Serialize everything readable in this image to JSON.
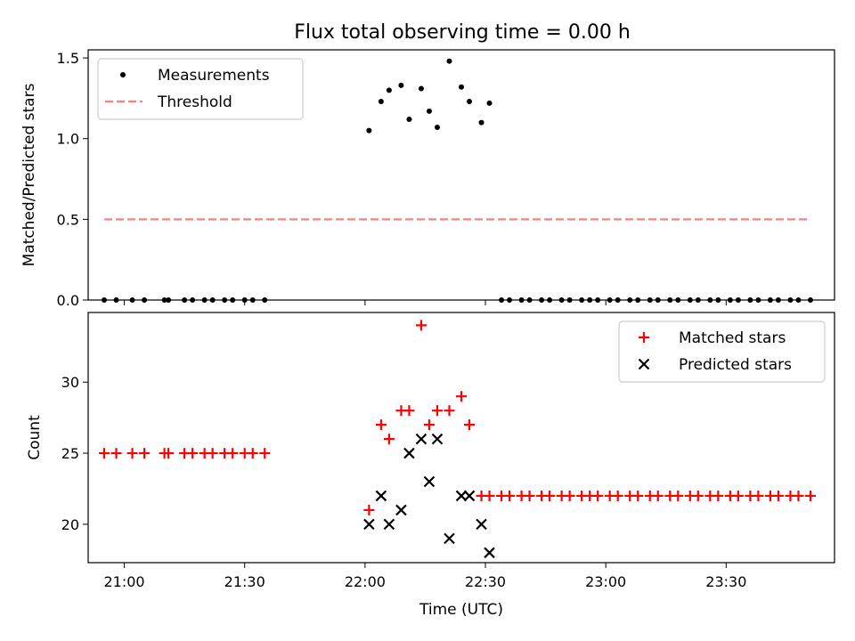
{
  "title": "Flux total observing time = 0.00 h",
  "xlabel": "Time (UTC)",
  "x_tick_labels": [
    "21:00",
    "21:30",
    "22:00",
    "22:30",
    "23:00",
    "23:30"
  ],
  "colors": {
    "measurement": "#000000",
    "threshold": "#ff7f7f",
    "matched": "#ff0000",
    "predicted": "#000000"
  },
  "chart_data": [
    {
      "type": "scatter",
      "ylabel": "Matched/Predicted stars",
      "ylim": [
        0,
        1.55
      ],
      "xlim": [
        "20:51",
        "23:57"
      ],
      "y_ticks": [
        0,
        0.5,
        1,
        1.5
      ],
      "y_tick_labels": [
        "0.0",
        "0.5",
        "1.0",
        "1.5"
      ],
      "legend_position": "top-left",
      "series": [
        {
          "name": "Measurements",
          "marker": "dot",
          "x": [
            "20:55",
            "20:58",
            "21:02",
            "21:05",
            "21:10",
            "21:11",
            "21:15",
            "21:17",
            "21:20",
            "21:22",
            "21:25",
            "21:27",
            "21:30",
            "21:32",
            "21:35",
            "22:01",
            "22:04",
            "22:06",
            "22:09",
            "22:11",
            "22:14",
            "22:16",
            "22:18",
            "22:21",
            "22:24",
            "22:26",
            "22:29",
            "22:31",
            "22:34",
            "22:36",
            "22:39",
            "22:41",
            "22:44",
            "22:46",
            "22:49",
            "22:51",
            "22:54",
            "22:56",
            "22:58",
            "23:01",
            "23:03",
            "23:06",
            "23:08",
            "23:11",
            "23:13",
            "23:16",
            "23:18",
            "23:21",
            "23:23",
            "23:26",
            "23:28",
            "23:31",
            "23:33",
            "23:36",
            "23:38",
            "23:41",
            "23:43",
            "23:46",
            "23:48",
            "23:51"
          ],
          "y": [
            0,
            0,
            0,
            0,
            0,
            0,
            0,
            0,
            0,
            0,
            0,
            0,
            0,
            0,
            0,
            1.05,
            1.23,
            1.3,
            1.33,
            1.12,
            1.31,
            1.17,
            1.07,
            1.48,
            1.32,
            1.23,
            1.1,
            1.22,
            0,
            0,
            0,
            0,
            0,
            0,
            0,
            0,
            0,
            0,
            0,
            0,
            0,
            0,
            0,
            0,
            0,
            0,
            0,
            0,
            0,
            0,
            0,
            0,
            0,
            0,
            0,
            0,
            0,
            0,
            0,
            0
          ]
        },
        {
          "name": "Threshold",
          "marker": "dashed-line",
          "x": [
            "20:55",
            "23:51"
          ],
          "y": [
            0.5,
            0.5
          ]
        }
      ]
    },
    {
      "type": "scatter",
      "ylabel": "Count",
      "ylim": [
        17.3,
        34.9
      ],
      "xlim": [
        "20:51",
        "23:57"
      ],
      "y_ticks": [
        20,
        25,
        30
      ],
      "y_tick_labels": [
        "20",
        "25",
        "30"
      ],
      "legend_position": "top-right",
      "series": [
        {
          "name": "Matched stars",
          "marker": "plus",
          "x": [
            "20:55",
            "20:58",
            "21:02",
            "21:05",
            "21:10",
            "21:11",
            "21:15",
            "21:17",
            "21:20",
            "21:22",
            "21:25",
            "21:27",
            "21:30",
            "21:32",
            "21:35",
            "22:01",
            "22:04",
            "22:06",
            "22:09",
            "22:11",
            "22:14",
            "22:16",
            "22:18",
            "22:21",
            "22:24",
            "22:26",
            "22:29",
            "22:31",
            "22:34",
            "22:36",
            "22:39",
            "22:41",
            "22:44",
            "22:46",
            "22:49",
            "22:51",
            "22:54",
            "22:56",
            "22:58",
            "23:01",
            "23:03",
            "23:06",
            "23:08",
            "23:11",
            "23:13",
            "23:16",
            "23:18",
            "23:21",
            "23:23",
            "23:26",
            "23:28",
            "23:31",
            "23:33",
            "23:36",
            "23:38",
            "23:41",
            "23:43",
            "23:46",
            "23:48",
            "23:51"
          ],
          "y": [
            25,
            25,
            25,
            25,
            25,
            25,
            25,
            25,
            25,
            25,
            25,
            25,
            25,
            25,
            25,
            21,
            27,
            26,
            28,
            28,
            34,
            27,
            28,
            28,
            29,
            27,
            22,
            22,
            22,
            22,
            22,
            22,
            22,
            22,
            22,
            22,
            22,
            22,
            22,
            22,
            22,
            22,
            22,
            22,
            22,
            22,
            22,
            22,
            22,
            22,
            22,
            22,
            22,
            22,
            22,
            22,
            22,
            22,
            22,
            22
          ]
        },
        {
          "name": "Predicted stars",
          "marker": "x",
          "x": [
            "22:01",
            "22:04",
            "22:06",
            "22:09",
            "22:11",
            "22:14",
            "22:16",
            "22:18",
            "22:21",
            "22:24",
            "22:26",
            "22:29",
            "22:31"
          ],
          "y": [
            20,
            22,
            20,
            21,
            25,
            26,
            23,
            26,
            19,
            22,
            22,
            20,
            18
          ]
        }
      ]
    }
  ]
}
